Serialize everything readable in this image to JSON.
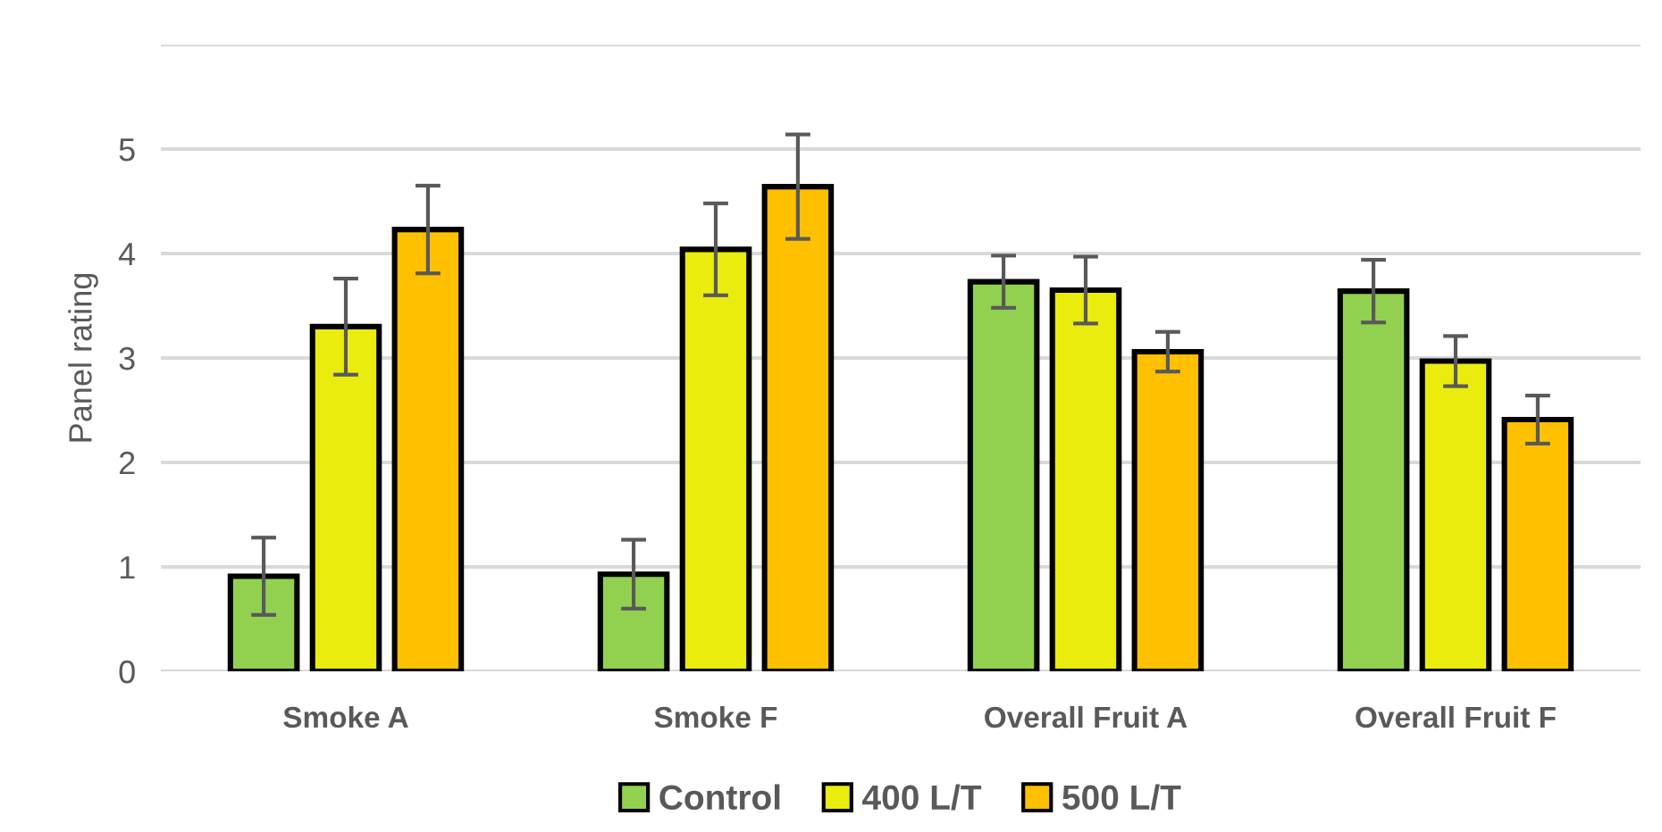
{
  "chart_data": {
    "type": "bar",
    "ylabel": "Panel rating",
    "categories": [
      "Smoke A",
      "Smoke F",
      "Overall Fruit A",
      "Overall Fruit F"
    ],
    "series": [
      {
        "name": "Control",
        "color": "#92d050",
        "values": [
          0.91,
          0.93,
          3.73,
          3.64
        ],
        "errors": [
          0.37,
          0.33,
          0.25,
          0.3
        ]
      },
      {
        "name": "400 L/T",
        "color": "#eaec0e",
        "values": [
          3.3,
          4.04,
          3.65,
          2.97
        ],
        "errors": [
          0.46,
          0.44,
          0.32,
          0.24
        ]
      },
      {
        "name": "500 L/T",
        "color": "#ffc000",
        "values": [
          4.23,
          4.64,
          3.06,
          2.41
        ],
        "errors": [
          0.42,
          0.5,
          0.19,
          0.23
        ]
      }
    ],
    "ylim": [
      0,
      6
    ],
    "yticks": [
      0,
      1,
      2,
      3,
      4,
      5,
      {
        "value": 6,
        "label": null
      }
    ],
    "grid": "y",
    "legend": "bottom"
  }
}
